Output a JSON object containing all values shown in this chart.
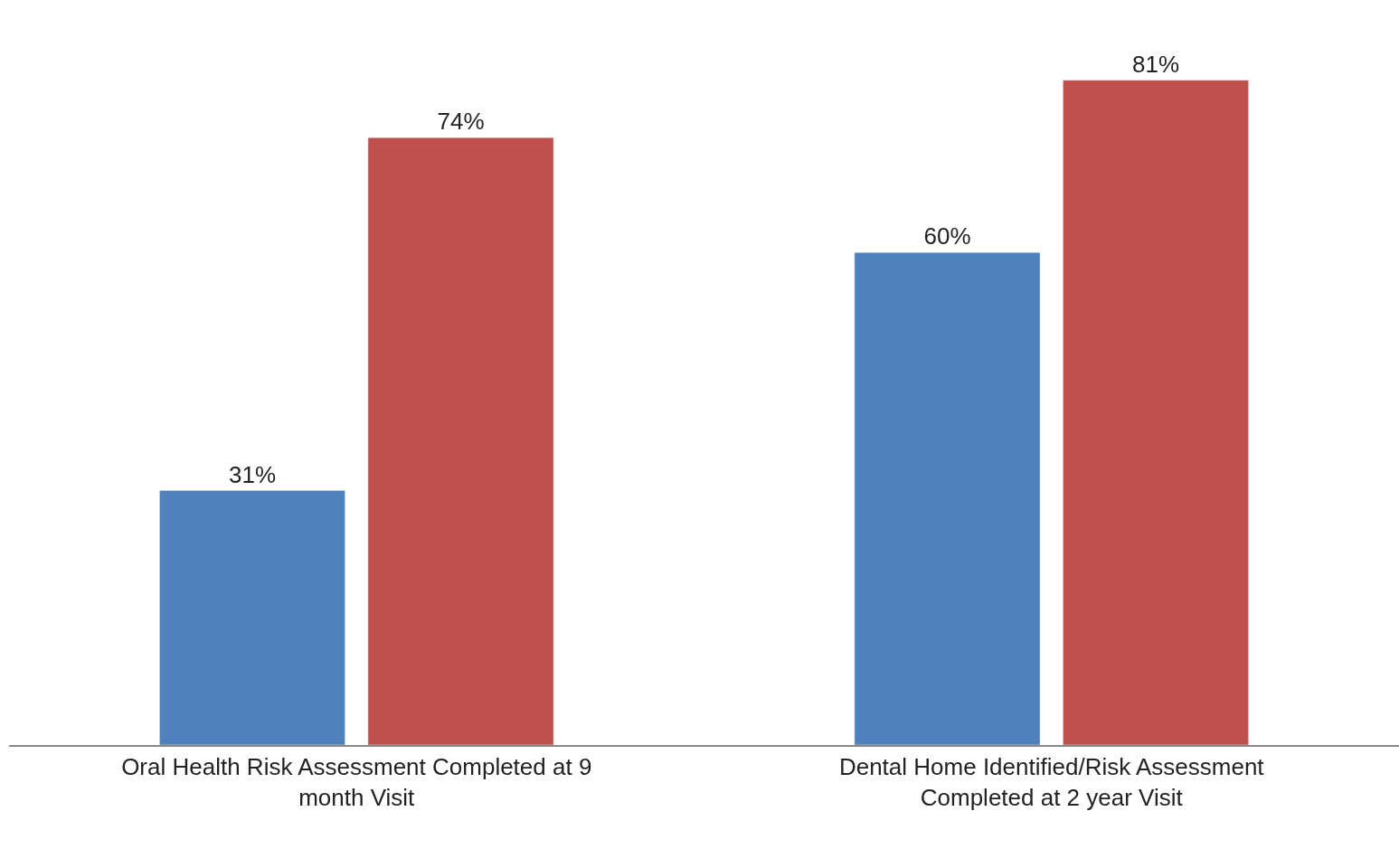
{
  "chart_data": {
    "type": "bar",
    "categories": [
      "Oral Health Risk Assessment Completed at 9 month Visit",
      "Dental Home Identified/Risk Assessment Completed at 2 year Visit"
    ],
    "series": [
      {
        "color": "#4f81bd",
        "values": [
          31,
          60
        ],
        "value_labels": [
          "31%",
          "60%"
        ]
      },
      {
        "color": "#c0504d",
        "values": [
          74,
          81
        ],
        "value_labels": [
          "74%",
          "81%"
        ]
      }
    ],
    "legend": false
  }
}
